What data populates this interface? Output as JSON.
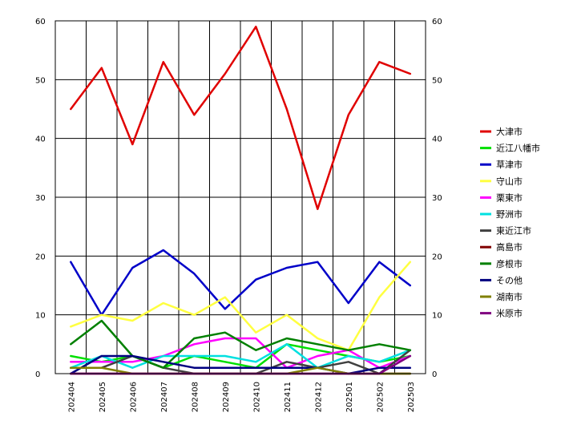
{
  "chart_data": {
    "type": "line",
    "title": "",
    "xlabel": "",
    "ylabel": "",
    "ylim": [
      0,
      60
    ],
    "yticks": [
      0,
      10,
      20,
      30,
      40,
      50,
      60
    ],
    "grid": true,
    "legend_position": "right",
    "dual_y_axis": true,
    "categories": [
      "202404",
      "202405",
      "202406",
      "202407",
      "202408",
      "202409",
      "202410",
      "202411",
      "202412",
      "202501",
      "202502",
      "202503"
    ],
    "series": [
      {
        "name": "大津市",
        "color": "#e00000",
        "values": [
          45,
          52,
          39,
          53,
          44,
          51,
          59,
          45,
          28,
          44,
          53,
          51
        ]
      },
      {
        "name": "近江八幡市",
        "color": "#00e000",
        "values": [
          3,
          2,
          3,
          1,
          3,
          2,
          1,
          5,
          4,
          3,
          2,
          3
        ]
      },
      {
        "name": "草津市",
        "color": "#0000c8",
        "values": [
          19,
          10,
          18,
          21,
          17,
          11,
          16,
          18,
          19,
          12,
          19,
          15
        ]
      },
      {
        "name": "守山市",
        "color": "#ffff40",
        "values": [
          8,
          10,
          9,
          12,
          10,
          13,
          7,
          10,
          6,
          4,
          13,
          19
        ]
      },
      {
        "name": "栗東市",
        "color": "#ff00ff",
        "values": [
          2,
          2,
          2,
          3,
          5,
          6,
          6,
          1,
          3,
          4,
          1,
          3
        ]
      },
      {
        "name": "野洲市",
        "color": "#00e0e0",
        "values": [
          1,
          3,
          1,
          3,
          3,
          3,
          2,
          5,
          1,
          3,
          2,
          4
        ]
      },
      {
        "name": "東近江市",
        "color": "#404040",
        "values": [
          1,
          1,
          3,
          1,
          0,
          0,
          0,
          2,
          1,
          2,
          0,
          4
        ]
      },
      {
        "name": "高島市",
        "color": "#800000",
        "values": [
          0,
          0,
          0,
          0,
          0,
          0,
          0,
          0,
          0,
          0,
          0,
          0
        ]
      },
      {
        "name": "彦根市",
        "color": "#008000",
        "values": [
          5,
          9,
          3,
          1,
          6,
          7,
          4,
          6,
          5,
          4,
          5,
          4
        ]
      },
      {
        "name": "その他",
        "color": "#000080",
        "values": [
          0,
          3,
          3,
          2,
          1,
          1,
          1,
          1,
          1,
          0,
          1,
          1
        ]
      },
      {
        "name": "湖南市",
        "color": "#808000",
        "values": [
          1,
          1,
          0,
          0,
          0,
          0,
          0,
          0,
          1,
          0,
          0,
          0
        ]
      },
      {
        "name": "米原市",
        "color": "#800080",
        "values": [
          0,
          0,
          0,
          0,
          0,
          0,
          0,
          0,
          0,
          0,
          0,
          3
        ]
      }
    ]
  }
}
